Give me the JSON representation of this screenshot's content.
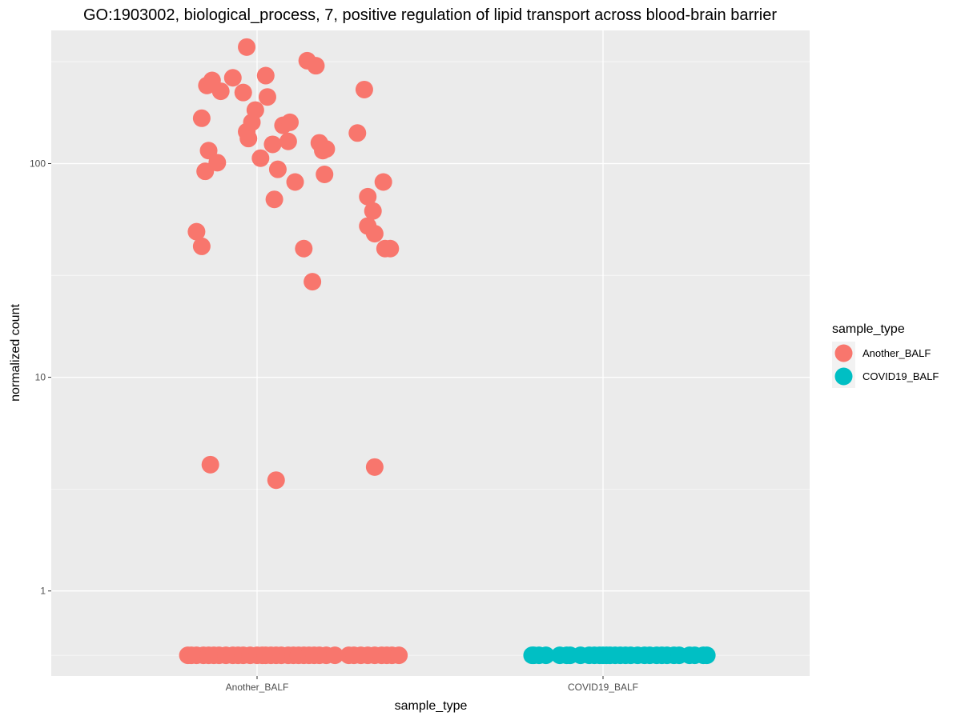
{
  "chart_data": {
    "type": "scatter",
    "title": "GO:1903002, biological_process, 7, positive regulation of lipid transport across blood-brain barrier",
    "xlabel": "sample_type",
    "ylabel": "normalized count",
    "categories": [
      "Another_BALF",
      "COVID19_BALF"
    ],
    "y_scale": "log10",
    "ylim": [
      0.4,
      420
    ],
    "y_ticks": [
      {
        "value": 1,
        "label": "1"
      },
      {
        "value": 10,
        "label": "10"
      },
      {
        "value": 100,
        "label": "100"
      }
    ],
    "grid": true,
    "legend": {
      "title": "sample_type",
      "position": "right",
      "entries": [
        {
          "label": "Another_BALF",
          "color": "#F8766D"
        },
        {
          "label": "COVID19_BALF",
          "color": "#00BFC4"
        }
      ]
    },
    "series": [
      {
        "category": "Another_BALF",
        "color": "#F8766D",
        "points": [
          [
            -0.06,
            351
          ],
          [
            -0.29,
            232
          ],
          [
            -0.32,
            163
          ],
          [
            -0.28,
            115
          ],
          [
            -0.3,
            92
          ],
          [
            -0.32,
            41
          ],
          [
            -0.35,
            48
          ],
          [
            -0.23,
            101
          ],
          [
            -0.26,
            245
          ],
          [
            -0.21,
            218
          ],
          [
            -0.14,
            252
          ],
          [
            -0.08,
            215
          ],
          [
            -0.06,
            141
          ],
          [
            -0.05,
            131
          ],
          [
            -0.03,
            156
          ],
          [
            -0.01,
            178
          ],
          [
            0.02,
            106
          ],
          [
            0.06,
            205
          ],
          [
            0.05,
            258
          ],
          [
            0.09,
            123
          ],
          [
            0.12,
            94
          ],
          [
            0.15,
            151
          ],
          [
            0.18,
            127
          ],
          [
            0.19,
            156
          ],
          [
            0.22,
            82
          ],
          [
            0.29,
            303
          ],
          [
            0.34,
            287
          ],
          [
            0.36,
            125
          ],
          [
            0.38,
            115
          ],
          [
            0.39,
            89
          ],
          [
            0.4,
            117
          ],
          [
            0.27,
            40
          ],
          [
            0.32,
            28
          ],
          [
            0.58,
            139
          ],
          [
            0.62,
            222
          ],
          [
            0.64,
            70
          ],
          [
            0.64,
            51
          ],
          [
            0.67,
            60
          ],
          [
            0.68,
            47
          ],
          [
            0.73,
            82
          ],
          [
            0.74,
            40
          ],
          [
            0.77,
            40
          ],
          [
            0.1,
            68
          ],
          [
            -0.27,
            3.9
          ],
          [
            0.11,
            3.3
          ],
          [
            0.68,
            3.8
          ],
          [
            -0.4,
            0.5
          ],
          [
            -0.38,
            0.5
          ],
          [
            -0.35,
            0.5
          ],
          [
            -0.31,
            0.5
          ],
          [
            -0.28,
            0.5
          ],
          [
            -0.25,
            0.5
          ],
          [
            -0.22,
            0.5
          ],
          [
            -0.18,
            0.5
          ],
          [
            -0.14,
            0.5
          ],
          [
            -0.11,
            0.5
          ],
          [
            -0.08,
            0.5
          ],
          [
            -0.04,
            0.5
          ],
          [
            0.0,
            0.5
          ],
          [
            0.03,
            0.5
          ],
          [
            0.05,
            0.5
          ],
          [
            0.08,
            0.5
          ],
          [
            0.11,
            0.5
          ],
          [
            0.14,
            0.5
          ],
          [
            0.18,
            0.5
          ],
          [
            0.21,
            0.5
          ],
          [
            0.24,
            0.5
          ],
          [
            0.27,
            0.5
          ],
          [
            0.3,
            0.5
          ],
          [
            0.33,
            0.5
          ],
          [
            0.36,
            0.5
          ],
          [
            0.4,
            0.5
          ],
          [
            0.45,
            0.5
          ],
          [
            0.53,
            0.5
          ],
          [
            0.56,
            0.5
          ],
          [
            0.6,
            0.5
          ],
          [
            0.64,
            0.5
          ],
          [
            0.68,
            0.5
          ],
          [
            0.72,
            0.5
          ],
          [
            0.75,
            0.5
          ],
          [
            0.78,
            0.5
          ],
          [
            0.82,
            0.5
          ]
        ]
      },
      {
        "category": "COVID19_BALF",
        "color": "#00BFC4",
        "points": [
          [
            -0.41,
            0.5
          ],
          [
            -0.37,
            0.5
          ],
          [
            -0.33,
            0.5
          ],
          [
            -0.25,
            0.5
          ],
          [
            -0.21,
            0.5
          ],
          [
            -0.19,
            0.5
          ],
          [
            -0.13,
            0.5
          ],
          [
            -0.08,
            0.5
          ],
          [
            -0.05,
            0.5
          ],
          [
            -0.02,
            0.5
          ],
          [
            0.0,
            0.5
          ],
          [
            0.02,
            0.5
          ],
          [
            0.04,
            0.5
          ],
          [
            0.07,
            0.5
          ],
          [
            0.1,
            0.5
          ],
          [
            0.13,
            0.5
          ],
          [
            0.16,
            0.5
          ],
          [
            0.2,
            0.5
          ],
          [
            0.24,
            0.5
          ],
          [
            0.27,
            0.5
          ],
          [
            0.31,
            0.5
          ],
          [
            0.34,
            0.5
          ],
          [
            0.37,
            0.5
          ],
          [
            0.41,
            0.5
          ],
          [
            0.44,
            0.5
          ],
          [
            0.5,
            0.5
          ],
          [
            0.53,
            0.5
          ],
          [
            -0.4,
            0.5
          ],
          [
            0.58,
            0.5
          ],
          [
            0.6,
            0.5
          ]
        ]
      }
    ]
  }
}
